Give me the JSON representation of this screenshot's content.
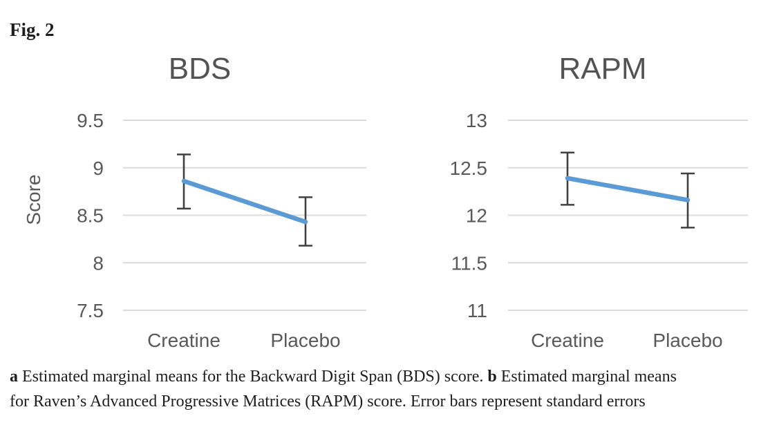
{
  "figure_label": "Fig. 2",
  "caption": {
    "bold_a": "a",
    "line1_after_a": " Estimated marginal means for the Backward Digit Span (BDS) score. ",
    "bold_b": "b",
    "line1_end": " Estimated marginal means",
    "line2": "for Raven’s Advanced Progressive Matrices (RAPM) score. Error bars represent standard errors"
  },
  "colors": {
    "line": "#5B9BD5",
    "error_bar": "#404040",
    "gridline": "#DBDBDB",
    "axis_text": "#595959",
    "title_text": "#535353",
    "caption_text": "#1e1e1e"
  },
  "chart_data": [
    {
      "type": "line",
      "title": "BDS",
      "ylabel": "Score",
      "xlabel": "",
      "categories": [
        "Creatine",
        "Placebo"
      ],
      "series": [
        {
          "values": [
            8.86,
            8.43
          ],
          "err_low": [
            8.57,
            8.18
          ],
          "err_high": [
            9.14,
            8.69
          ]
        }
      ],
      "ylim": [
        7.5,
        9.5
      ],
      "yticks": [
        9.5,
        9,
        8.5,
        8,
        7.5
      ],
      "grid": true,
      "legend": "none",
      "error_bars": "standard errors"
    },
    {
      "type": "line",
      "title": "RAPM",
      "ylabel": "",
      "xlabel": "",
      "categories": [
        "Creatine",
        "Placebo"
      ],
      "series": [
        {
          "values": [
            12.39,
            12.16
          ],
          "err_low": [
            12.11,
            11.87
          ],
          "err_high": [
            12.66,
            12.44
          ]
        }
      ],
      "ylim": [
        11,
        13
      ],
      "yticks": [
        13,
        12.5,
        12,
        11.5,
        11
      ],
      "grid": true,
      "legend": "none",
      "error_bars": "standard errors"
    }
  ]
}
